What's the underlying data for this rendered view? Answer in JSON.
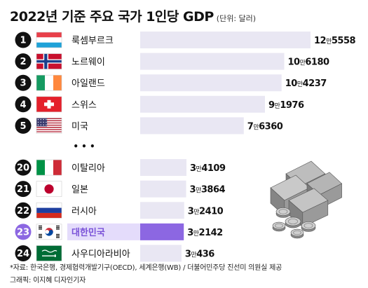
{
  "title": "2022년 기준 주요 국가 1인당 GDP",
  "unit_note": "(단위: 달러)",
  "ellipsis": "• • •",
  "source": "*자료: 한국은행, 경제협력개발기구(OECD), 세계은행(WB) / 더불어민주당 진선미 의원실 제공",
  "credit": "그래픽: 이지혜 디자인기자",
  "colors": {
    "bar": "#e9e7f3",
    "highlight_bar": "#8c67e2",
    "highlight_rank": "#8c67e2",
    "highlight_label_bg": "#e4dcfb",
    "highlight_text": "#7a52d8",
    "rank_circle": "#111111"
  },
  "chart_data": {
    "type": "bar",
    "orientation": "horizontal",
    "title": "2022년 기준 주요 국가 1인당 GDP",
    "unit": "달러",
    "gap_after_rank": 5,
    "categories": [
      "룩셈부르크",
      "노르웨이",
      "아일랜드",
      "스위스",
      "미국",
      "이탈리아",
      "일본",
      "러시아",
      "대한민국",
      "사우디아라비아"
    ],
    "ranks": [
      1,
      2,
      3,
      4,
      5,
      20,
      21,
      22,
      23,
      24
    ],
    "flags": [
      "luxembourg-flag",
      "norway-flag",
      "ireland-flag",
      "switzerland-flag",
      "usa-flag",
      "italy-flag",
      "japan-flag",
      "russia-flag",
      "south-korea-flag",
      "saudi-arabia-flag"
    ],
    "values": [
      125558,
      106180,
      104237,
      91976,
      76360,
      34109,
      33864,
      32410,
      32142,
      30436
    ],
    "value_labels": [
      {
        "man": "12",
        "rest": "5558"
      },
      {
        "man": "10",
        "rest": "6180"
      },
      {
        "man": "10",
        "rest": "4237"
      },
      {
        "man": "9",
        "rest": "1976"
      },
      {
        "man": "7",
        "rest": "6360"
      },
      {
        "man": "3",
        "rest": "4109"
      },
      {
        "man": "3",
        "rest": "3864"
      },
      {
        "man": "3",
        "rest": "2410"
      },
      {
        "man": "3",
        "rest": "2142"
      },
      {
        "man": "3",
        "rest": "436"
      }
    ],
    "man_unit": "만",
    "highlight": "대한민국",
    "xlim": [
      0,
      125558
    ],
    "legend": "none",
    "grid": false
  },
  "decoration": "money-stack-icon"
}
